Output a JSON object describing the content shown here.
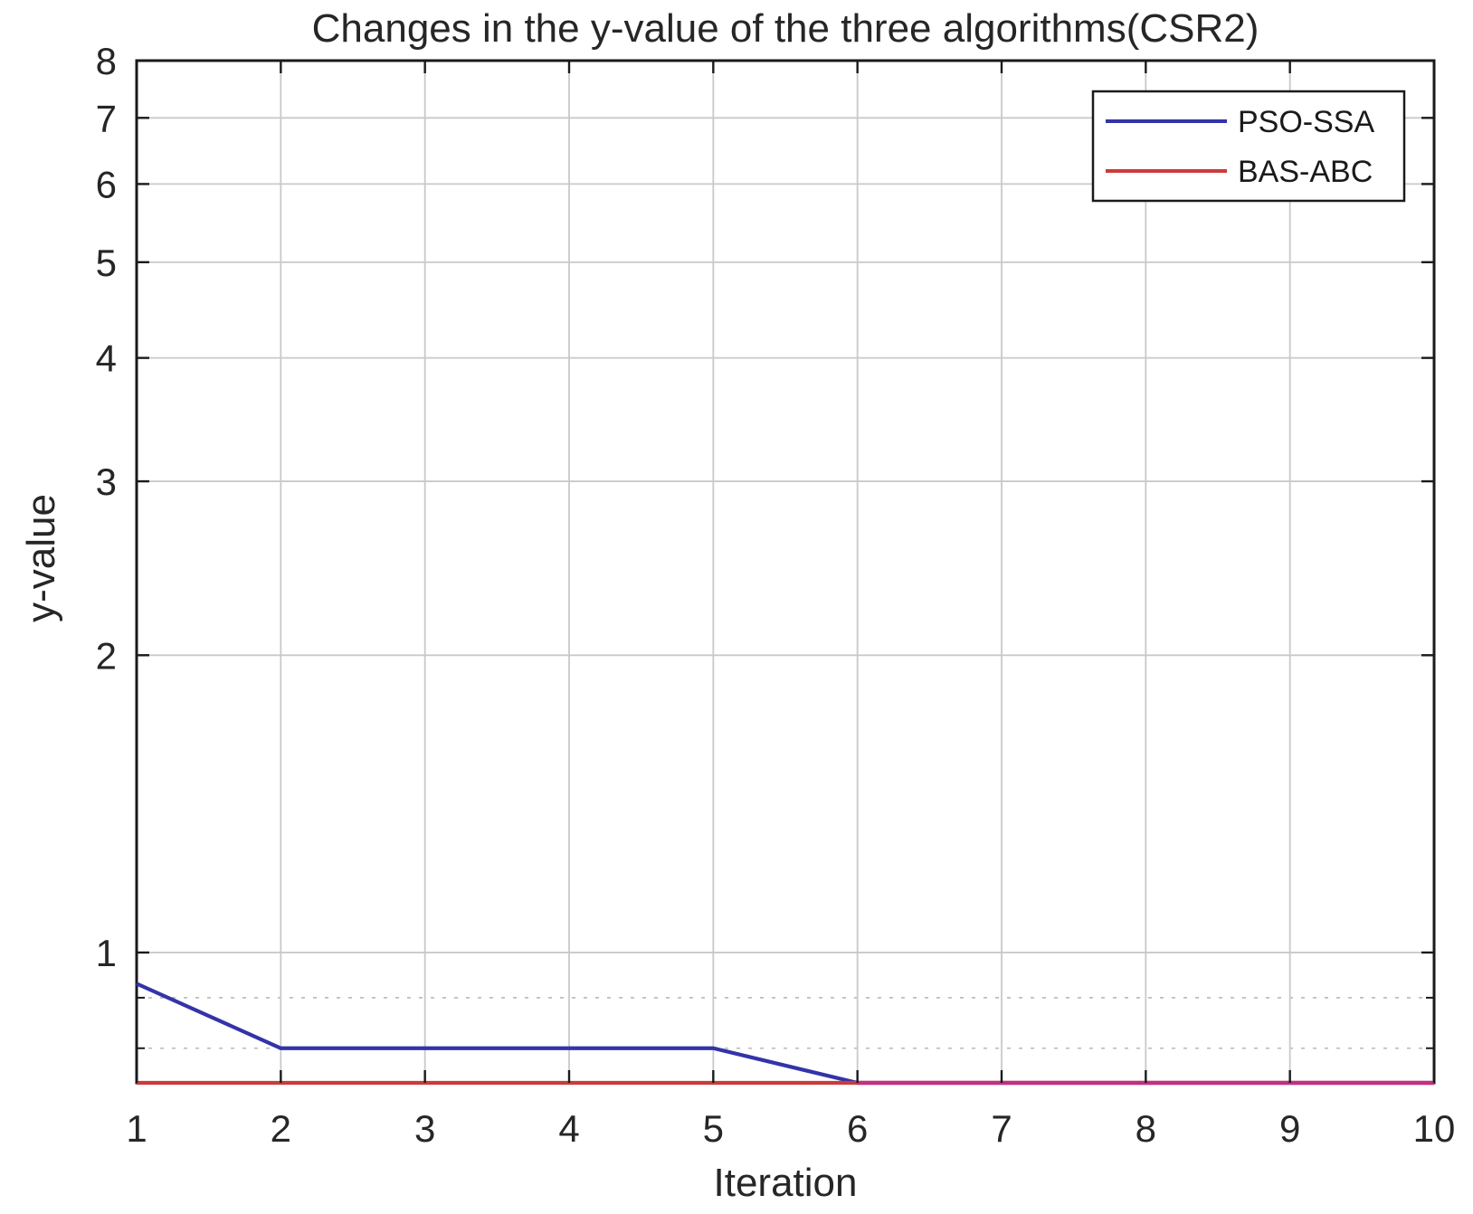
{
  "chart_data": {
    "type": "line",
    "title": "Changes in the y-value of the three algorithms(CSR2)",
    "xlabel": "Iteration",
    "ylabel": "y-value",
    "x": [
      1,
      2,
      3,
      4,
      5,
      6,
      7,
      8,
      9,
      10
    ],
    "series": [
      {
        "name": "PSO-SSA",
        "color": "#3333aa",
        "values": [
          0.93,
          0.8,
          0.8,
          0.8,
          0.8,
          0.738,
          0.738,
          0.738,
          0.738,
          0.738
        ]
      },
      {
        "name": "BAS-ABC",
        "color": "#cc3b3b",
        "values": [
          0.738,
          0.738,
          0.738,
          0.738,
          0.738,
          0.738,
          0.738,
          0.738,
          0.738,
          0.738
        ]
      }
    ],
    "overlap_color": "#c62e80",
    "y_scale": "log",
    "xlim": [
      1,
      10
    ],
    "ylim": [
      0.738,
      8
    ],
    "x_ticks": [
      1,
      2,
      3,
      4,
      5,
      6,
      7,
      8,
      9,
      10
    ],
    "y_major_ticks": [
      1,
      2,
      3,
      4,
      5,
      6,
      7,
      8
    ],
    "y_minor_ticks": [
      0.9,
      0.8
    ],
    "grid": true,
    "legend_position": "top-right",
    "colors": {
      "text": "#262626",
      "axis": "#1a1a1a",
      "grid_major": "#c9c9c9",
      "grid_minor": "#b8b8b8",
      "background": "#ffffff"
    }
  }
}
